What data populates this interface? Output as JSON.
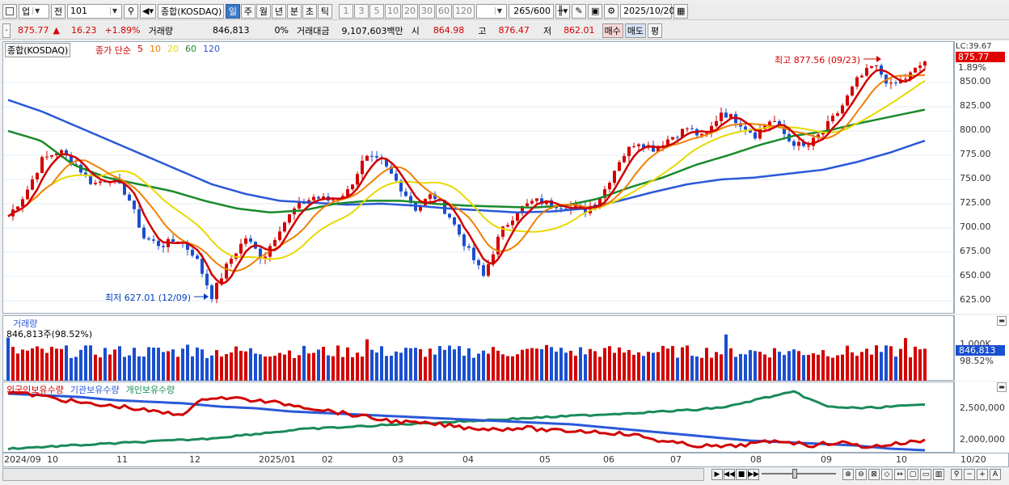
{
  "toolbar": {
    "market": "업",
    "prev_label": "전",
    "code": "101",
    "index_name": "종합(KOSDAQ)",
    "periods": [
      "일",
      "주",
      "월",
      "년",
      "분",
      "초",
      "틱"
    ],
    "selected_period": "일",
    "intervals": [
      "1",
      "3",
      "5",
      "10",
      "20",
      "30",
      "60",
      "120"
    ],
    "count": "265",
    "total": "/600",
    "date": "2025/10/20"
  },
  "quote": {
    "price": "875.77",
    "change": "16.23",
    "change_pct": "+1.89%",
    "volume_label": "거래량",
    "volume": "846,813",
    "vol_ratio": "0%",
    "amount_label": "거래대금",
    "amount": "9,107,603백만",
    "open_label": "시",
    "open": "864.98",
    "high_label": "고",
    "high": "876.47",
    "low_label": "저",
    "low": "862.01",
    "buy_label": "매수",
    "sell_label": "매도",
    "eval_label": "평"
  },
  "price_panel": {
    "name": "종합(KOSDAQ)",
    "legend_prefix": "종가 단순",
    "ma": [
      {
        "label": "5",
        "color": "#d00000"
      },
      {
        "label": "10",
        "color": "#f08000"
      },
      {
        "label": "20",
        "color": "#e8d800"
      },
      {
        "label": "60",
        "color": "#1a8a2a"
      },
      {
        "label": "120",
        "color": "#2a58d8"
      }
    ],
    "high_note": "최고 877.56 (09/23)",
    "low_note": "최저 627.01 (12/09)",
    "lc": "LC:39.67",
    "last_price": "875.77",
    "last_pct": "1.89%",
    "y_ticks": [
      "850.00",
      "825.00",
      "800.00",
      "775.00",
      "750.00",
      "725.00",
      "700.00",
      "675.00",
      "650.00",
      "625.00"
    ]
  },
  "volume_panel": {
    "title": "거래량",
    "value": "846,813주(98.52%)",
    "axis_ref": "1,000K",
    "last": "846,813",
    "last_pct": "98.52%"
  },
  "holding_panel": {
    "legend": [
      {
        "label": "외국인보유수량",
        "color": "#d00000"
      },
      {
        "label": "기관보유수량",
        "color": "#2a58d8"
      },
      {
        "label": "개인보유수량",
        "color": "#1a8a5a"
      }
    ],
    "y_ticks": [
      "2,500,000",
      "2,000,000"
    ]
  },
  "x_axis": [
    "2024/09",
    "10",
    "11",
    "12",
    "2025/01",
    "02",
    "03",
    "04",
    "05",
    "06",
    "07",
    "08",
    "09",
    "10"
  ],
  "x_end": "10/20",
  "colors": {
    "up": "#d40000",
    "down": "#1a4fd0"
  }
}
